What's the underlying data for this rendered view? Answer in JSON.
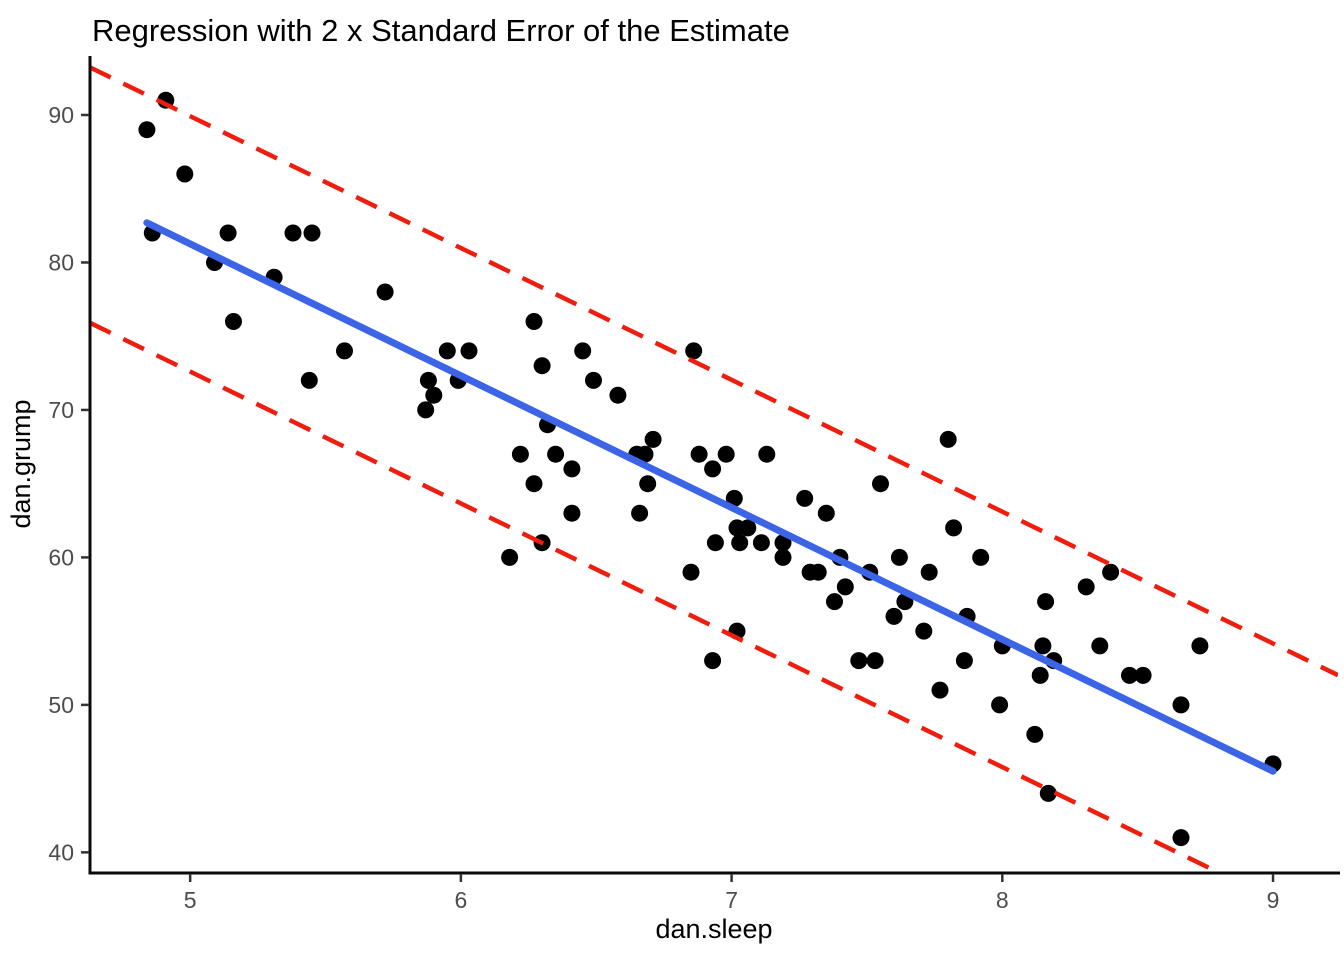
{
  "chart_data": {
    "type": "scatter",
    "title": "Regression with 2 x Standard Error of the Estimate",
    "xlabel": "dan.sleep",
    "ylabel": "dan.grump",
    "x_ticks": [
      5,
      6,
      7,
      8,
      9
    ],
    "y_ticks": [
      40,
      50,
      60,
      70,
      80,
      90
    ],
    "xlim": [
      4.63,
      9.24
    ],
    "ylim": [
      38.6,
      94.0
    ],
    "grid": false,
    "legend": "none",
    "points": [
      [
        4.84,
        89
      ],
      [
        4.86,
        82
      ],
      [
        4.91,
        91
      ],
      [
        4.98,
        86
      ],
      [
        5.09,
        80
      ],
      [
        5.14,
        82
      ],
      [
        5.16,
        76
      ],
      [
        5.31,
        79
      ],
      [
        5.38,
        82
      ],
      [
        5.44,
        72
      ],
      [
        5.45,
        82
      ],
      [
        5.57,
        74
      ],
      [
        5.72,
        78
      ],
      [
        5.87,
        70
      ],
      [
        5.88,
        72
      ],
      [
        5.9,
        71
      ],
      [
        5.95,
        74
      ],
      [
        5.99,
        72
      ],
      [
        6.03,
        74
      ],
      [
        6.18,
        60
      ],
      [
        6.22,
        67
      ],
      [
        6.27,
        76
      ],
      [
        6.27,
        65
      ],
      [
        6.3,
        73
      ],
      [
        6.3,
        61
      ],
      [
        6.32,
        69
      ],
      [
        6.35,
        67
      ],
      [
        6.41,
        66
      ],
      [
        6.41,
        63
      ],
      [
        6.45,
        74
      ],
      [
        6.49,
        72
      ],
      [
        6.58,
        71
      ],
      [
        6.65,
        67
      ],
      [
        6.68,
        67
      ],
      [
        6.66,
        63
      ],
      [
        6.69,
        65
      ],
      [
        6.71,
        68
      ],
      [
        6.85,
        59
      ],
      [
        6.86,
        74
      ],
      [
        6.88,
        67
      ],
      [
        6.93,
        66
      ],
      [
        6.93,
        53
      ],
      [
        6.94,
        61
      ],
      [
        6.98,
        67
      ],
      [
        7.01,
        64
      ],
      [
        7.02,
        62
      ],
      [
        7.02,
        55
      ],
      [
        7.03,
        61
      ],
      [
        7.06,
        62
      ],
      [
        7.11,
        61
      ],
      [
        7.13,
        67
      ],
      [
        7.19,
        61
      ],
      [
        7.19,
        60
      ],
      [
        7.27,
        64
      ],
      [
        7.29,
        59
      ],
      [
        7.32,
        59
      ],
      [
        7.35,
        63
      ],
      [
        7.38,
        57
      ],
      [
        7.4,
        60
      ],
      [
        7.42,
        58
      ],
      [
        7.47,
        53
      ],
      [
        7.51,
        59
      ],
      [
        7.53,
        53
      ],
      [
        7.55,
        65
      ],
      [
        7.6,
        56
      ],
      [
        7.62,
        60
      ],
      [
        7.64,
        57
      ],
      [
        7.71,
        55
      ],
      [
        7.73,
        59
      ],
      [
        7.77,
        51
      ],
      [
        7.8,
        68
      ],
      [
        7.82,
        62
      ],
      [
        7.86,
        53
      ],
      [
        7.87,
        56
      ],
      [
        7.92,
        60
      ],
      [
        7.99,
        50
      ],
      [
        8.0,
        54
      ],
      [
        8.12,
        48
      ],
      [
        8.14,
        52
      ],
      [
        8.15,
        54
      ],
      [
        8.16,
        57
      ],
      [
        8.17,
        44
      ],
      [
        8.19,
        53
      ],
      [
        8.31,
        58
      ],
      [
        8.36,
        54
      ],
      [
        8.4,
        59
      ],
      [
        8.47,
        52
      ],
      [
        8.52,
        52
      ],
      [
        8.66,
        50
      ],
      [
        8.66,
        41
      ],
      [
        8.73,
        54
      ],
      [
        9.0,
        46
      ]
    ],
    "regression": {
      "equation": "dan.grump = 125.96 - 8.94 * dan.sleep",
      "intercept": 125.96,
      "slope": -8.94,
      "x_start": 4.84,
      "x_end": 9.0
    },
    "band": {
      "label": "2 x standard error of the estimate",
      "offset": 8.66
    },
    "colors": {
      "points": "#000000",
      "regression_line": "#3b65e6",
      "band_lines": "#ee1d0e",
      "axis": "#0a0a0a",
      "ticks": "#333333",
      "tick_labels": "#4d4d4d",
      "title": "#000000"
    }
  }
}
